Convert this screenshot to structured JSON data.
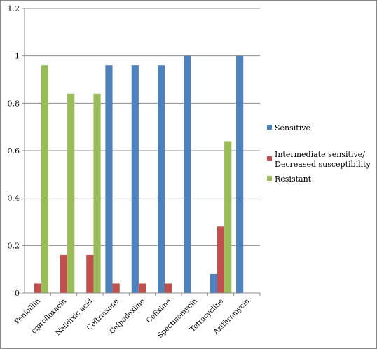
{
  "chart_data": {
    "type": "bar",
    "title": "",
    "xlabel": "",
    "ylabel": "",
    "ylim": [
      0,
      1.2
    ],
    "yticks": [
      "0",
      "0.2",
      "0.4",
      "0.6",
      "0.8",
      "1",
      "1.2"
    ],
    "grid": true,
    "legend_position": "right",
    "categories": [
      "Penicillin",
      "ciprofloxacin",
      "Nalidixic acid",
      "Ceftriaxone",
      "Cefpodoxime",
      "Cefixime",
      "Spectinomycin",
      "Tetracycline",
      "Azithromycin"
    ],
    "series": [
      {
        "name": "Sensitive",
        "color": "#4f81bd",
        "values": [
          0,
          0,
          0,
          0.96,
          0.96,
          0.96,
          1.0,
          0.08,
          1.0
        ]
      },
      {
        "name": "Intermediate sensitive/ Decreased susceptibility",
        "legend_lines": [
          "Intermediate sensitive/",
          "Decreased susceptibility"
        ],
        "color": "#c0504d",
        "values": [
          0.04,
          0.16,
          0.16,
          0.04,
          0.04,
          0.04,
          0,
          0.28,
          0
        ]
      },
      {
        "name": "Resistant",
        "color": "#9bbb59",
        "values": [
          0.96,
          0.84,
          0.84,
          0,
          0,
          0,
          0,
          0.64,
          0
        ]
      }
    ]
  }
}
